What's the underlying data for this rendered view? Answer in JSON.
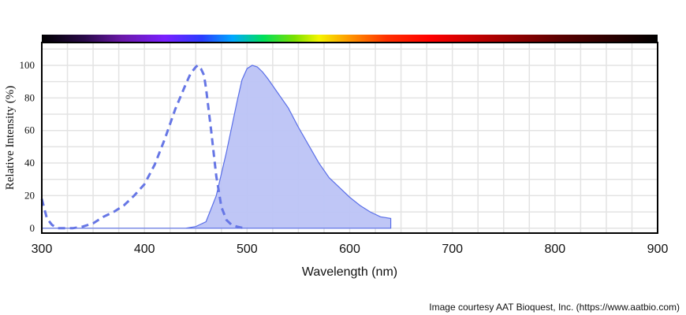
{
  "chart_data": {
    "type": "area",
    "xlabel": "Wavelength (nm)",
    "ylabel": "Relative Intensity (%)",
    "xlim": [
      300,
      900
    ],
    "ylim": [
      -3,
      114
    ],
    "x_ticks": [
      300,
      400,
      500,
      600,
      700,
      800,
      900
    ],
    "y_ticks": [
      0,
      20,
      40,
      60,
      80,
      100
    ],
    "grid": true,
    "spectrum_bar": true,
    "colors": {
      "excitation": "#6676e5",
      "emission_fill": "#bcc3f5",
      "emission_line": "#5a6fe8"
    },
    "series": [
      {
        "style": "dashed-line",
        "x": [
          300,
          305,
          310,
          315,
          320,
          330,
          340,
          350,
          360,
          370,
          380,
          390,
          400,
          410,
          420,
          430,
          440,
          445,
          450,
          452,
          455,
          458,
          460,
          465,
          470,
          475,
          480,
          485,
          490,
          495,
          500
        ],
        "y": [
          18,
          6,
          2,
          0,
          0,
          0,
          1,
          3,
          7,
          10,
          14,
          20,
          27,
          39,
          55,
          73,
          88,
          95,
          99,
          100,
          98,
          94,
          86,
          60,
          32,
          13,
          5,
          2,
          1,
          0.3,
          0
        ]
      },
      {
        "style": "filled-area",
        "x": [
          300,
          440,
          450,
          460,
          470,
          480,
          490,
          495,
          500,
          505,
          510,
          515,
          520,
          530,
          540,
          550,
          560,
          570,
          580,
          590,
          600,
          610,
          620,
          630,
          640
        ],
        "y": [
          0,
          0,
          1,
          4,
          20,
          47,
          77,
          91,
          98,
          100,
          99,
          96,
          92,
          83,
          74,
          62,
          51,
          40,
          31,
          25,
          19,
          14,
          10,
          7,
          6
        ]
      }
    ]
  },
  "credit": "Image courtesy AAT Bioquest, Inc. (https://www.aatbio.com)"
}
